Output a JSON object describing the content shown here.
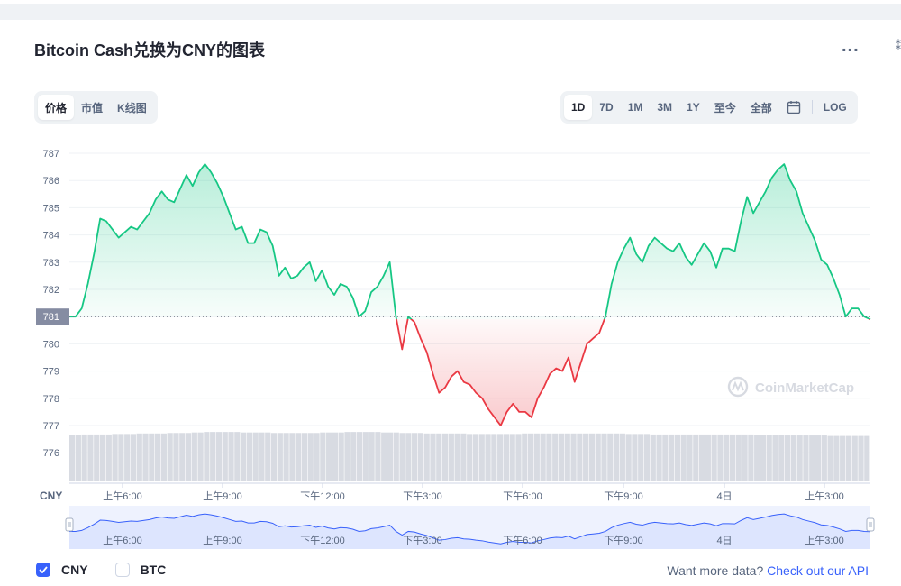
{
  "header": {
    "title": "Bitcoin Cash兑换为CNY的图表",
    "more_label": "..."
  },
  "chart_type_tabs": [
    {
      "label": "价格",
      "active": true
    },
    {
      "label": "市值",
      "active": false
    },
    {
      "label": "K线图",
      "active": false
    }
  ],
  "range_tabs": [
    {
      "label": "1D",
      "active": true
    },
    {
      "label": "7D",
      "active": false
    },
    {
      "label": "1M",
      "active": false
    },
    {
      "label": "3M",
      "active": false
    },
    {
      "label": "1Y",
      "active": false
    },
    {
      "label": "至今",
      "active": false
    },
    {
      "label": "全部",
      "active": false
    }
  ],
  "calendar_icon": "calendar-icon",
  "log_label": "LOG",
  "chart_data": {
    "type": "area",
    "title": "",
    "currency_label": "CNY",
    "y_ticks": [
      787,
      786,
      785,
      784,
      783,
      782,
      781,
      780,
      779,
      778,
      777,
      776
    ],
    "baseline": 781,
    "baseline_label": "781",
    "ylim": [
      775.5,
      787.5
    ],
    "x_tick_labels": [
      "上午6:00",
      "上午9:00",
      "下午12:00",
      "下午3:00",
      "下午6:00",
      "下午9:00",
      "4日",
      "上午3:00"
    ],
    "price_series": {
      "name": "",
      "values": [
        781.0,
        781.0,
        781.3,
        782.2,
        783.3,
        784.6,
        784.5,
        784.2,
        783.9,
        784.1,
        784.3,
        784.2,
        784.5,
        784.8,
        785.3,
        785.6,
        785.3,
        785.2,
        785.7,
        786.2,
        785.8,
        786.3,
        786.6,
        786.3,
        785.9,
        785.4,
        784.8,
        784.2,
        784.3,
        783.7,
        783.7,
        784.2,
        784.1,
        783.6,
        782.5,
        782.8,
        782.4,
        782.5,
        782.8,
        783.0,
        782.3,
        782.7,
        782.1,
        781.8,
        782.2,
        782.1,
        781.7,
        781.0,
        781.2,
        781.9,
        782.1,
        782.5,
        783.0,
        781.0,
        779.8,
        781.0,
        780.8,
        780.2,
        779.7,
        778.9,
        778.2,
        778.4,
        778.8,
        779.0,
        778.6,
        778.5,
        778.2,
        778.0,
        777.6,
        777.3,
        777.0,
        777.5,
        777.8,
        777.5,
        777.5,
        777.3,
        778.0,
        778.4,
        778.9,
        779.1,
        779.0,
        779.5,
        778.6,
        779.3,
        780.0,
        780.2,
        780.4,
        781.0,
        782.2,
        783.0,
        783.5,
        783.9,
        783.3,
        783.0,
        783.6,
        783.9,
        783.7,
        783.5,
        783.4,
        783.7,
        783.2,
        782.9,
        783.3,
        783.7,
        783.4,
        782.8,
        783.5,
        783.5,
        783.4,
        784.5,
        785.4,
        784.8,
        785.2,
        785.6,
        786.1,
        786.4,
        786.6,
        786.0,
        785.6,
        784.8,
        784.3,
        783.8,
        783.1,
        782.9,
        782.4,
        781.8,
        781.0,
        781.3,
        781.3,
        781.0,
        780.9
      ]
    },
    "volume_series": {
      "name": "",
      "values": [
        0.92,
        0.92,
        0.93,
        0.93,
        0.93,
        0.93,
        0.93,
        0.94,
        0.94,
        0.94,
        0.94,
        0.95,
        0.95,
        0.95,
        0.95,
        0.95,
        0.96,
        0.96,
        0.96,
        0.96,
        0.97,
        0.97,
        0.98,
        0.98,
        0.98,
        0.98,
        0.98,
        0.98,
        0.97,
        0.97,
        0.97,
        0.97,
        0.97,
        0.96,
        0.96,
        0.96,
        0.96,
        0.96,
        0.96,
        0.96,
        0.96,
        0.97,
        0.97,
        0.97,
        0.97,
        0.98,
        0.98,
        0.98,
        0.98,
        0.98,
        0.98,
        0.97,
        0.97,
        0.97,
        0.96,
        0.96,
        0.96,
        0.96,
        0.95,
        0.95,
        0.95,
        0.95,
        0.95,
        0.95,
        0.95,
        0.94,
        0.94,
        0.94,
        0.94,
        0.94,
        0.94,
        0.94,
        0.94,
        0.94,
        0.95,
        0.95,
        0.95,
        0.95,
        0.95,
        0.95,
        0.95,
        0.95,
        0.95,
        0.95,
        0.95,
        0.95,
        0.95,
        0.95,
        0.95,
        0.95,
        0.95,
        0.94,
        0.94,
        0.94,
        0.94,
        0.93,
        0.93,
        0.93,
        0.93,
        0.93,
        0.93,
        0.93,
        0.93,
        0.93,
        0.93,
        0.93,
        0.93,
        0.93,
        0.93,
        0.93,
        0.93,
        0.93,
        0.92,
        0.92,
        0.92,
        0.92,
        0.92,
        0.91,
        0.91,
        0.91,
        0.91,
        0.91,
        0.91,
        0.91,
        0.9,
        0.9,
        0.9,
        0.9,
        0.9,
        0.9,
        0.9
      ]
    },
    "watermark": "CoinMarketCap",
    "colors": {
      "up": "#16c784",
      "down": "#ea3943",
      "baseline_label_bg": "#858ca2",
      "navigator_fill": "#dde5fe",
      "navigator_line": "#3861fb"
    }
  },
  "legend": [
    {
      "label": "CNY",
      "checked": true
    },
    {
      "label": "BTC",
      "checked": false
    }
  ],
  "footer": {
    "api_prompt": "Want more data?",
    "api_link": "Check out our API"
  }
}
